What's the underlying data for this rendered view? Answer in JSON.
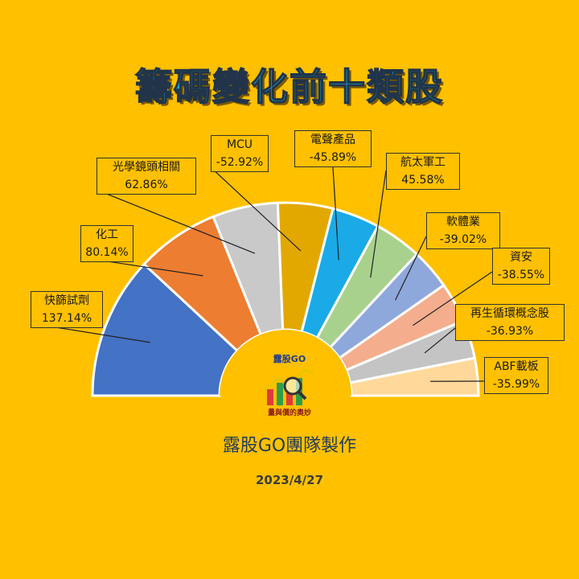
{
  "title": "籌碼變化前十類股",
  "footer": "露股GO團隊製作",
  "date": "2023/4/27",
  "logo": {
    "top_text": "露股GO",
    "bottom_text": "量與價的奧妙",
    "icon": "magnifier-chart-logo"
  },
  "chart_data": {
    "type": "pie",
    "title": "籌碼變化前十類股",
    "shape": "half-donut",
    "categories": [
      "快篩試劑",
      "化工",
      "光學鏡頭相關",
      "MCU",
      "電聲產品",
      "航太軍工",
      "軟體業",
      "資安",
      "再生循環概念股",
      "ABF載板"
    ],
    "values": [
      137.14,
      80.14,
      62.86,
      -52.92,
      -45.89,
      45.58,
      -39.02,
      -38.55,
      -36.93,
      -35.99
    ],
    "value_labels": [
      "137.14%",
      "80.14%",
      "62.86%",
      "-52.92%",
      "-45.89%",
      "45.58%",
      "-39.02%",
      "-38.55%",
      "-36.93%",
      "-35.99%"
    ],
    "colors": [
      "#4472C4",
      "#ED7D31",
      "#C9C9C9",
      "#E2A800",
      "#1AAAE8",
      "#A9D18E",
      "#8FA8DC",
      "#F4AE8E",
      "#C4C4C4",
      "#FFD89A"
    ]
  }
}
